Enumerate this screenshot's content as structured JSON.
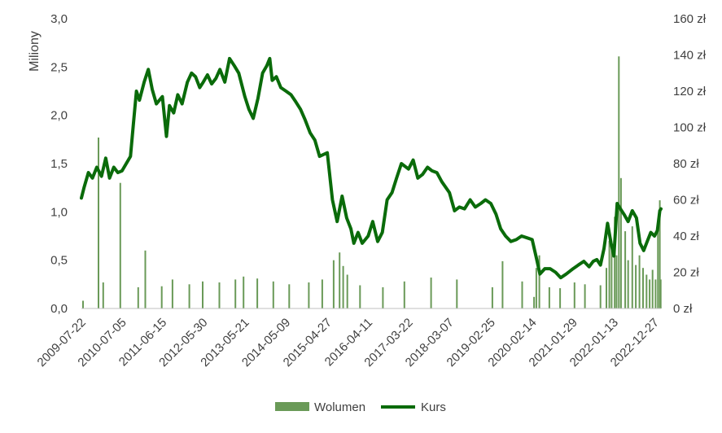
{
  "chart_data": {
    "type": "bar+line",
    "ylabel": "Miliony",
    "y_left": {
      "ticks": [
        "0,0",
        "0,5",
        "1,0",
        "1,5",
        "2,0",
        "2,5",
        "3,0"
      ],
      "lim": [
        0,
        3.0
      ]
    },
    "y_right": {
      "ticks": [
        "0 zł",
        "20 zł",
        "40 zł",
        "60 zł",
        "80 zł",
        "100 zł",
        "120 zł",
        "140 zł",
        "160 zł"
      ],
      "lim": [
        0,
        160
      ]
    },
    "x_ticks": [
      "2009-07-22",
      "2010-07-05",
      "2011-06-15",
      "2012-05-30",
      "2013-05-21",
      "2014-05-09",
      "2015-04-27",
      "2016-04-11",
      "2017-03-22",
      "2018-03-07",
      "2019-02-25",
      "2020-02-14",
      "2021-01-29",
      "2022-01-13",
      "2022-12-27"
    ],
    "x_range": [
      "2009-07-22",
      "2023-02-20"
    ],
    "grid": false,
    "legend": {
      "position": "bottom",
      "items": [
        "Wolumen",
        "Kurs"
      ]
    },
    "colors": {
      "volume": "#6a9a58",
      "price": "#0a6b0a"
    },
    "series": [
      {
        "name": "Kurs",
        "axis": "right",
        "x": [
          "2009-07-22",
          "2009-08-15",
          "2009-09-20",
          "2009-10-25",
          "2009-12-01",
          "2010-01-10",
          "2010-02-15",
          "2010-03-20",
          "2010-04-25",
          "2010-05-30",
          "2010-07-05",
          "2010-08-10",
          "2010-09-15",
          "2010-10-10",
          "2010-11-05",
          "2010-12-01",
          "2011-01-10",
          "2011-02-15",
          "2011-03-20",
          "2011-04-25",
          "2011-06-15",
          "2011-07-20",
          "2011-08-15",
          "2011-09-20",
          "2011-10-25",
          "2011-12-01",
          "2012-01-15",
          "2012-02-20",
          "2012-03-25",
          "2012-04-30",
          "2012-05-30",
          "2012-07-05",
          "2012-08-10",
          "2012-09-15",
          "2012-10-20",
          "2012-12-01",
          "2013-01-10",
          "2013-02-20",
          "2013-03-30",
          "2013-05-21",
          "2013-06-25",
          "2013-08-01",
          "2013-09-10",
          "2013-10-20",
          "2013-11-25",
          "2013-12-20",
          "2014-01-10",
          "2014-02-15",
          "2014-03-25",
          "2014-05-09",
          "2014-06-20",
          "2014-08-01",
          "2014-09-10",
          "2014-10-20",
          "2014-12-01",
          "2015-01-10",
          "2015-02-20",
          "2015-04-27",
          "2015-06-10",
          "2015-07-20",
          "2015-09-01",
          "2015-10-10",
          "2015-11-15",
          "2015-12-10",
          "2016-01-15",
          "2016-02-20",
          "2016-04-11",
          "2016-05-20",
          "2016-07-01",
          "2016-08-10",
          "2016-09-20",
          "2016-11-01",
          "2016-12-10",
          "2017-01-20",
          "2017-03-22",
          "2017-05-01",
          "2017-06-10",
          "2017-07-20",
          "2017-09-01",
          "2017-10-10",
          "2017-11-20",
          "2018-01-01",
          "2018-03-07",
          "2018-04-20",
          "2018-06-01",
          "2018-07-15",
          "2018-09-01",
          "2018-10-15",
          "2018-12-01",
          "2019-01-10",
          "2019-02-25",
          "2019-04-10",
          "2019-05-20",
          "2019-07-01",
          "2019-08-15",
          "2019-10-01",
          "2019-11-15",
          "2019-12-31",
          "2020-02-14",
          "2020-03-20",
          "2020-04-20",
          "2020-06-01",
          "2020-07-15",
          "2020-09-01",
          "2020-10-15",
          "2020-12-01",
          "2021-01-29",
          "2021-03-15",
          "2021-05-01",
          "2021-06-15",
          "2021-07-20",
          "2021-08-20",
          "2021-09-20",
          "2021-10-20",
          "2021-11-20",
          "2021-12-20",
          "2022-01-13",
          "2022-02-10",
          "2022-03-10",
          "2022-04-10",
          "2022-05-15",
          "2022-06-20",
          "2022-07-25",
          "2022-08-25",
          "2022-09-25",
          "2022-10-25",
          "2022-11-25",
          "2022-12-27",
          "2023-01-20",
          "2023-02-10",
          "2023-02-20"
        ],
        "values": [
          61,
          67,
          75,
          72,
          78,
          73,
          83,
          72,
          78,
          75,
          76,
          80,
          84,
          102,
          120,
          115,
          125,
          132,
          121,
          113,
          117,
          95,
          112,
          108,
          118,
          113,
          125,
          130,
          128,
          122,
          125,
          129,
          124,
          127,
          132,
          125,
          138,
          134,
          130,
          117,
          110,
          105,
          116,
          130,
          134,
          138,
          126,
          128,
          122,
          120,
          118,
          114,
          110,
          104,
          97,
          93,
          84,
          86,
          60,
          48,
          62,
          50,
          44,
          36,
          42,
          36,
          40,
          48,
          37,
          42,
          60,
          64,
          72,
          80,
          77,
          82,
          72,
          74,
          78,
          76,
          75,
          70,
          64,
          54,
          56,
          55,
          60,
          56,
          58,
          60,
          58,
          52,
          44,
          40,
          37,
          38,
          40,
          39,
          38,
          28,
          19,
          22,
          22,
          20,
          17,
          19,
          22,
          24,
          26,
          23,
          26,
          27,
          24,
          33,
          47,
          36,
          29,
          58,
          55,
          52,
          48,
          54,
          50,
          36,
          32,
          37,
          42,
          40,
          43,
          54,
          55
        ]
      },
      {
        "name": "Wolumen",
        "axis": "left",
        "x": [
          "2009-08-05",
          "2009-12-15",
          "2010-01-25",
          "2010-06-20",
          "2010-11-20",
          "2011-01-20",
          "2011-06-10",
          "2011-09-10",
          "2012-02-01",
          "2012-05-25",
          "2012-10-15",
          "2013-03-01",
          "2013-05-10",
          "2013-09-05",
          "2014-01-20",
          "2014-06-05",
          "2014-11-20",
          "2015-03-15",
          "2015-06-20",
          "2015-08-10",
          "2015-09-10",
          "2015-10-15",
          "2016-02-01",
          "2016-08-15",
          "2017-02-15",
          "2017-10-01",
          "2018-05-10",
          "2019-03-10",
          "2019-06-05",
          "2019-11-20",
          "2020-03-01",
          "2020-03-20",
          "2020-04-15",
          "2020-07-10",
          "2020-10-10",
          "2021-02-10",
          "2021-05-10",
          "2021-09-20",
          "2021-11-10",
          "2021-12-05",
          "2021-12-25",
          "2022-01-20",
          "2022-02-05",
          "2022-02-25",
          "2022-03-15",
          "2022-04-20",
          "2022-05-15",
          "2022-06-20",
          "2022-07-20",
          "2022-08-20",
          "2022-09-20",
          "2022-10-20",
          "2022-11-15",
          "2022-12-10",
          "2023-01-05",
          "2023-01-25",
          "2023-02-10",
          "2023-02-18"
        ],
        "values": [
          0.08,
          1.77,
          0.27,
          1.3,
          0.22,
          0.6,
          0.23,
          0.3,
          0.25,
          0.28,
          0.27,
          0.3,
          0.33,
          0.31,
          0.28,
          0.25,
          0.27,
          0.3,
          0.5,
          0.58,
          0.44,
          0.35,
          0.24,
          0.22,
          0.28,
          0.32,
          0.3,
          0.22,
          0.49,
          0.28,
          0.12,
          0.42,
          0.55,
          0.22,
          0.21,
          0.27,
          0.25,
          0.24,
          0.42,
          0.7,
          0.62,
          0.95,
          0.55,
          2.61,
          1.35,
          0.8,
          0.5,
          0.85,
          0.45,
          0.55,
          0.42,
          0.35,
          0.3,
          0.4,
          0.3,
          0.88,
          1.12,
          0.3
        ]
      }
    ]
  }
}
